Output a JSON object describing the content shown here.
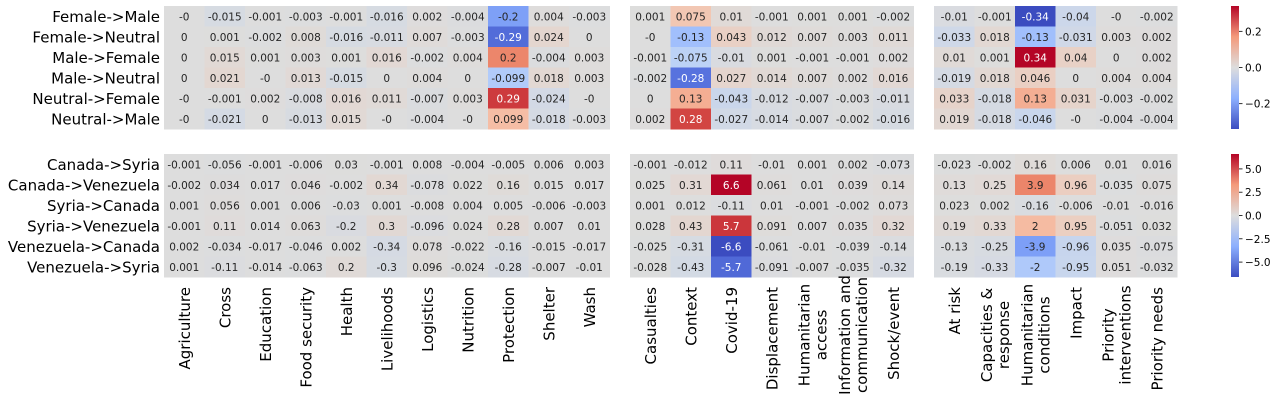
{
  "chart_data": {
    "type": "heatmap",
    "colormap": "coolwarm",
    "column_groups": [
      [
        "Agriculture",
        "Cross",
        "Education",
        "Food security",
        "Health",
        "Livelihoods",
        "Logistics",
        "Nutrition",
        "Protection",
        "Shelter",
        "Wash"
      ],
      [
        "Casualties",
        "Context",
        "Covid-19",
        "Displacement",
        "Humanitarian\naccess",
        "Information and\ncommunication",
        "Shock/event"
      ],
      [
        "At risk",
        "Capacities &\nresponse",
        "Humanitarian\nconditions",
        "Impact",
        "Priority\ninterventions",
        "Priority needs"
      ]
    ],
    "panels": [
      {
        "row_labels": [
          "Female->Male",
          "Female->Neutral",
          "Male->Female",
          "Male->Neutral",
          "Neutral->Female",
          "Neutral->Male"
        ],
        "colorbar": {
          "min": -0.34,
          "max": 0.34,
          "ticks": [
            0.2,
            0.0,
            -0.2
          ],
          "tick_labels": [
            "0.2",
            "0.0",
            "−0.2"
          ]
        },
        "values": [
          [
            [
              "-0",
              "-0.015",
              "-0.001",
              "-0.003",
              "-0.001",
              "-0.016",
              "0.002",
              "-0.004",
              "-0.2",
              "0.004",
              "-0.003"
            ],
            [
              "0.001",
              "0.075",
              "0.01",
              "-0.001",
              "0.001",
              "0.001",
              "-0.002"
            ],
            [
              "-0.01",
              "-0.001",
              "-0.34",
              "-0.04",
              "-0",
              "-0.002"
            ]
          ],
          [
            [
              "0",
              "0.001",
              "-0.002",
              "0.008",
              "-0.016",
              "-0.011",
              "0.007",
              "-0.003",
              "-0.29",
              "0.024",
              "0"
            ],
            [
              "-0",
              "-0.13",
              "0.043",
              "0.012",
              "0.007",
              "0.003",
              "0.011"
            ],
            [
              "-0.033",
              "0.018",
              "-0.13",
              "-0.031",
              "0.003",
              "0.002"
            ]
          ],
          [
            [
              "0",
              "0.015",
              "0.001",
              "0.003",
              "0.001",
              "0.016",
              "-0.002",
              "0.004",
              "0.2",
              "-0.004",
              "0.003"
            ],
            [
              "-0.001",
              "-0.075",
              "-0.01",
              "0.001",
              "-0.001",
              "-0.001",
              "0.002"
            ],
            [
              "0.01",
              "0.001",
              "0.34",
              "0.04",
              "0",
              "0.002"
            ]
          ],
          [
            [
              "0",
              "0.021",
              "-0",
              "0.013",
              "-0.015",
              "0",
              "0.004",
              "0",
              "-0.099",
              "0.018",
              "0.003"
            ],
            [
              "-0.002",
              "-0.28",
              "0.027",
              "0.014",
              "0.007",
              "0.002",
              "0.016"
            ],
            [
              "-0.019",
              "0.018",
              "0.046",
              "0",
              "0.004",
              "0.004"
            ]
          ],
          [
            [
              "-0",
              "-0.001",
              "0.002",
              "-0.008",
              "0.016",
              "0.011",
              "-0.007",
              "0.003",
              "0.29",
              "-0.024",
              "-0"
            ],
            [
              "0",
              "0.13",
              "-0.043",
              "-0.012",
              "-0.007",
              "-0.003",
              "-0.011"
            ],
            [
              "0.033",
              "-0.018",
              "0.13",
              "0.031",
              "-0.003",
              "-0.002"
            ]
          ],
          [
            [
              "-0",
              "-0.021",
              "0",
              "-0.013",
              "0.015",
              "-0",
              "-0.004",
              "-0",
              "0.099",
              "-0.018",
              "-0.003"
            ],
            [
              "0.002",
              "0.28",
              "-0.027",
              "-0.014",
              "-0.007",
              "-0.002",
              "-0.016"
            ],
            [
              "0.019",
              "-0.018",
              "-0.046",
              "-0",
              "-0.004",
              "-0.004"
            ]
          ]
        ]
      },
      {
        "row_labels": [
          "Canada->Syria",
          "Canada->Venezuela",
          "Syria->Canada",
          "Syria->Venezuela",
          "Venezuela->Canada",
          "Venezuela->Syria"
        ],
        "colorbar": {
          "min": -6.6,
          "max": 6.6,
          "ticks": [
            5,
            2.5,
            0,
            -2.5,
            -5
          ],
          "tick_labels": [
            "5.0",
            "2.5",
            "0.0",
            "−2.5",
            "−5.0"
          ]
        },
        "values": [
          [
            [
              "-0.001",
              "-0.056",
              "-0.001",
              "-0.006",
              "0.03",
              "-0.001",
              "0.008",
              "-0.004",
              "-0.005",
              "0.006",
              "0.003"
            ],
            [
              "-0.001",
              "-0.012",
              "0.11",
              "-0.01",
              "0.001",
              "0.002",
              "-0.073"
            ],
            [
              "-0.023",
              "-0.002",
              "0.16",
              "0.006",
              "0.01",
              "0.016"
            ]
          ],
          [
            [
              "-0.002",
              "0.034",
              "0.017",
              "0.046",
              "-0.002",
              "0.34",
              "-0.078",
              "0.022",
              "0.16",
              "0.015",
              "0.017"
            ],
            [
              "0.025",
              "0.31",
              "6.6",
              "0.061",
              "0.01",
              "0.039",
              "0.14"
            ],
            [
              "0.13",
              "0.25",
              "3.9",
              "0.96",
              "-0.035",
              "0.075"
            ]
          ],
          [
            [
              "0.001",
              "0.056",
              "0.001",
              "0.006",
              "-0.03",
              "0.001",
              "-0.008",
              "0.004",
              "0.005",
              "-0.006",
              "-0.003"
            ],
            [
              "0.001",
              "0.012",
              "-0.11",
              "0.01",
              "-0.001",
              "-0.002",
              "0.073"
            ],
            [
              "0.023",
              "0.002",
              "-0.16",
              "-0.006",
              "-0.01",
              "-0.016"
            ]
          ],
          [
            [
              "-0.001",
              "0.11",
              "0.014",
              "0.063",
              "-0.2",
              "0.3",
              "-0.096",
              "0.024",
              "0.28",
              "0.007",
              "0.01"
            ],
            [
              "0.028",
              "0.43",
              "5.7",
              "0.091",
              "0.007",
              "0.035",
              "0.32"
            ],
            [
              "0.19",
              "0.33",
              "2",
              "0.95",
              "-0.051",
              "0.032"
            ]
          ],
          [
            [
              "0.002",
              "-0.034",
              "-0.017",
              "-0.046",
              "0.002",
              "-0.34",
              "0.078",
              "-0.022",
              "-0.16",
              "-0.015",
              "-0.017"
            ],
            [
              "-0.025",
              "-0.31",
              "-6.6",
              "-0.061",
              "-0.01",
              "-0.039",
              "-0.14"
            ],
            [
              "-0.13",
              "-0.25",
              "-3.9",
              "-0.96",
              "0.035",
              "-0.075"
            ]
          ],
          [
            [
              "0.001",
              "-0.11",
              "-0.014",
              "-0.063",
              "0.2",
              "-0.3",
              "0.096",
              "-0.024",
              "-0.28",
              "-0.007",
              "-0.01"
            ],
            [
              "-0.028",
              "-0.43",
              "-5.7",
              "-0.091",
              "-0.007",
              "-0.035",
              "-0.32"
            ],
            [
              "-0.19",
              "-0.33",
              "-2",
              "-0.95",
              "0.051",
              "-0.032"
            ]
          ]
        ]
      }
    ]
  }
}
